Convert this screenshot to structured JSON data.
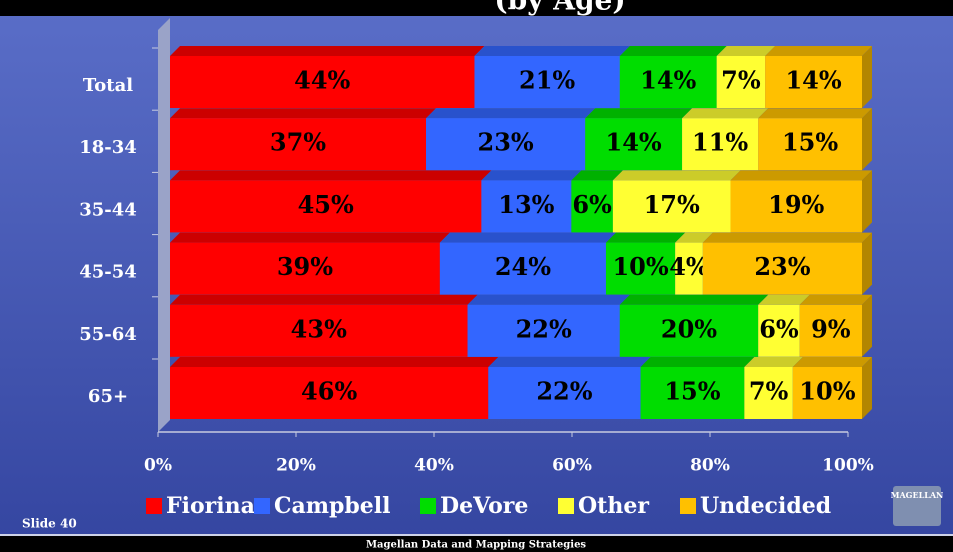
{
  "chart_data": {
    "type": "stacked-bar-horizontal",
    "title": "(by Age)",
    "categories": [
      "Total",
      "18-34",
      "35-44",
      "45-54",
      "55-64",
      "65+"
    ],
    "series": [
      {
        "name": "Fiorina",
        "color": "#ff0000",
        "values": [
          44,
          37,
          45,
          39,
          43,
          46
        ],
        "value_labels": [
          "44%",
          "37%",
          "45%",
          "39%",
          "43%",
          "46%"
        ]
      },
      {
        "name": "Campbell",
        "color": "#3366ff",
        "values": [
          21,
          23,
          13,
          24,
          22,
          22
        ],
        "value_labels": [
          "21%",
          "23%",
          "13%",
          "24%",
          "22%",
          "22%"
        ]
      },
      {
        "name": "DeVore",
        "color": "#00dd00",
        "values": [
          14,
          14,
          6,
          10,
          20,
          15
        ],
        "value_labels": [
          "14%",
          "14%",
          "6%",
          "10%",
          "20%",
          "15%"
        ]
      },
      {
        "name": "Other",
        "color": "#ffff33",
        "values": [
          7,
          11,
          17,
          4,
          6,
          7
        ],
        "value_labels": [
          "7%",
          "11%",
          "17%",
          "4%",
          "6%",
          "7%"
        ]
      },
      {
        "name": "Undecided",
        "color": "#ffc000",
        "values": [
          14,
          15,
          19,
          23,
          9,
          10
        ],
        "value_labels": [
          "14%",
          "15%",
          "19%",
          "23%",
          "9%",
          "10%"
        ]
      }
    ],
    "xlim": [
      0,
      100
    ],
    "xticks": [
      {
        "value": 0,
        "label": "0%"
      },
      {
        "value": 20,
        "label": "20%"
      },
      {
        "value": 40,
        "label": "40%"
      },
      {
        "value": 60,
        "label": "60%"
      },
      {
        "value": 80,
        "label": "80%"
      },
      {
        "value": 100,
        "label": "100%"
      }
    ],
    "legend": "bottom"
  },
  "footer": {
    "slide": "Slide 40",
    "organization": "Magellan Data and Mapping Strategies",
    "logo": "MAGELLAN"
  }
}
